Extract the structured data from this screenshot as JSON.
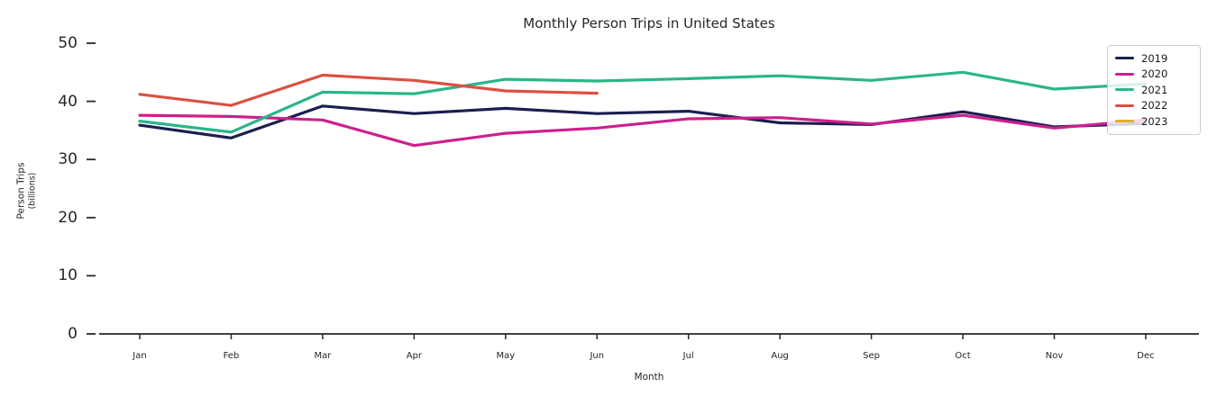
{
  "chart_data": {
    "type": "line",
    "title": "Monthly Person Trips in United States",
    "xlabel": "Month",
    "ylabel": "Person Trips",
    "ylabel_sub": "(billions)",
    "categories": [
      "Jan",
      "Feb",
      "Mar",
      "Apr",
      "May",
      "Jun",
      "Jul",
      "Aug",
      "Sep",
      "Oct",
      "Nov",
      "Dec"
    ],
    "yticks": [
      0,
      10,
      20,
      30,
      40,
      50
    ],
    "ylim": [
      0,
      52
    ],
    "grid": false,
    "legend_position": "upper right",
    "axis_color": "#262626",
    "series": [
      {
        "name": "2019",
        "color": "#1c1e4f",
        "values": [
          35.9,
          33.7,
          39.2,
          37.9,
          38.8,
          37.9,
          38.3,
          36.3,
          36.0,
          38.2,
          35.6,
          36.2
        ]
      },
      {
        "name": "2020",
        "color": "#cc1f8d",
        "values": [
          37.6,
          37.4,
          36.8,
          32.4,
          34.5,
          35.4,
          37.0,
          37.2,
          36.1,
          37.6,
          35.4,
          36.8
        ]
      },
      {
        "name": "2021",
        "color": "#2ab58c",
        "values": [
          36.6,
          34.7,
          41.6,
          41.3,
          43.8,
          43.5,
          43.9,
          44.4,
          43.6,
          45.0,
          42.1,
          43.0
        ]
      },
      {
        "name": "2022",
        "color": "#dc4f41",
        "values": [
          41.2,
          39.3,
          44.5,
          43.6,
          41.8,
          41.4
        ]
      },
      {
        "name": "2023",
        "color": "#dcb22a",
        "values": []
      }
    ]
  }
}
